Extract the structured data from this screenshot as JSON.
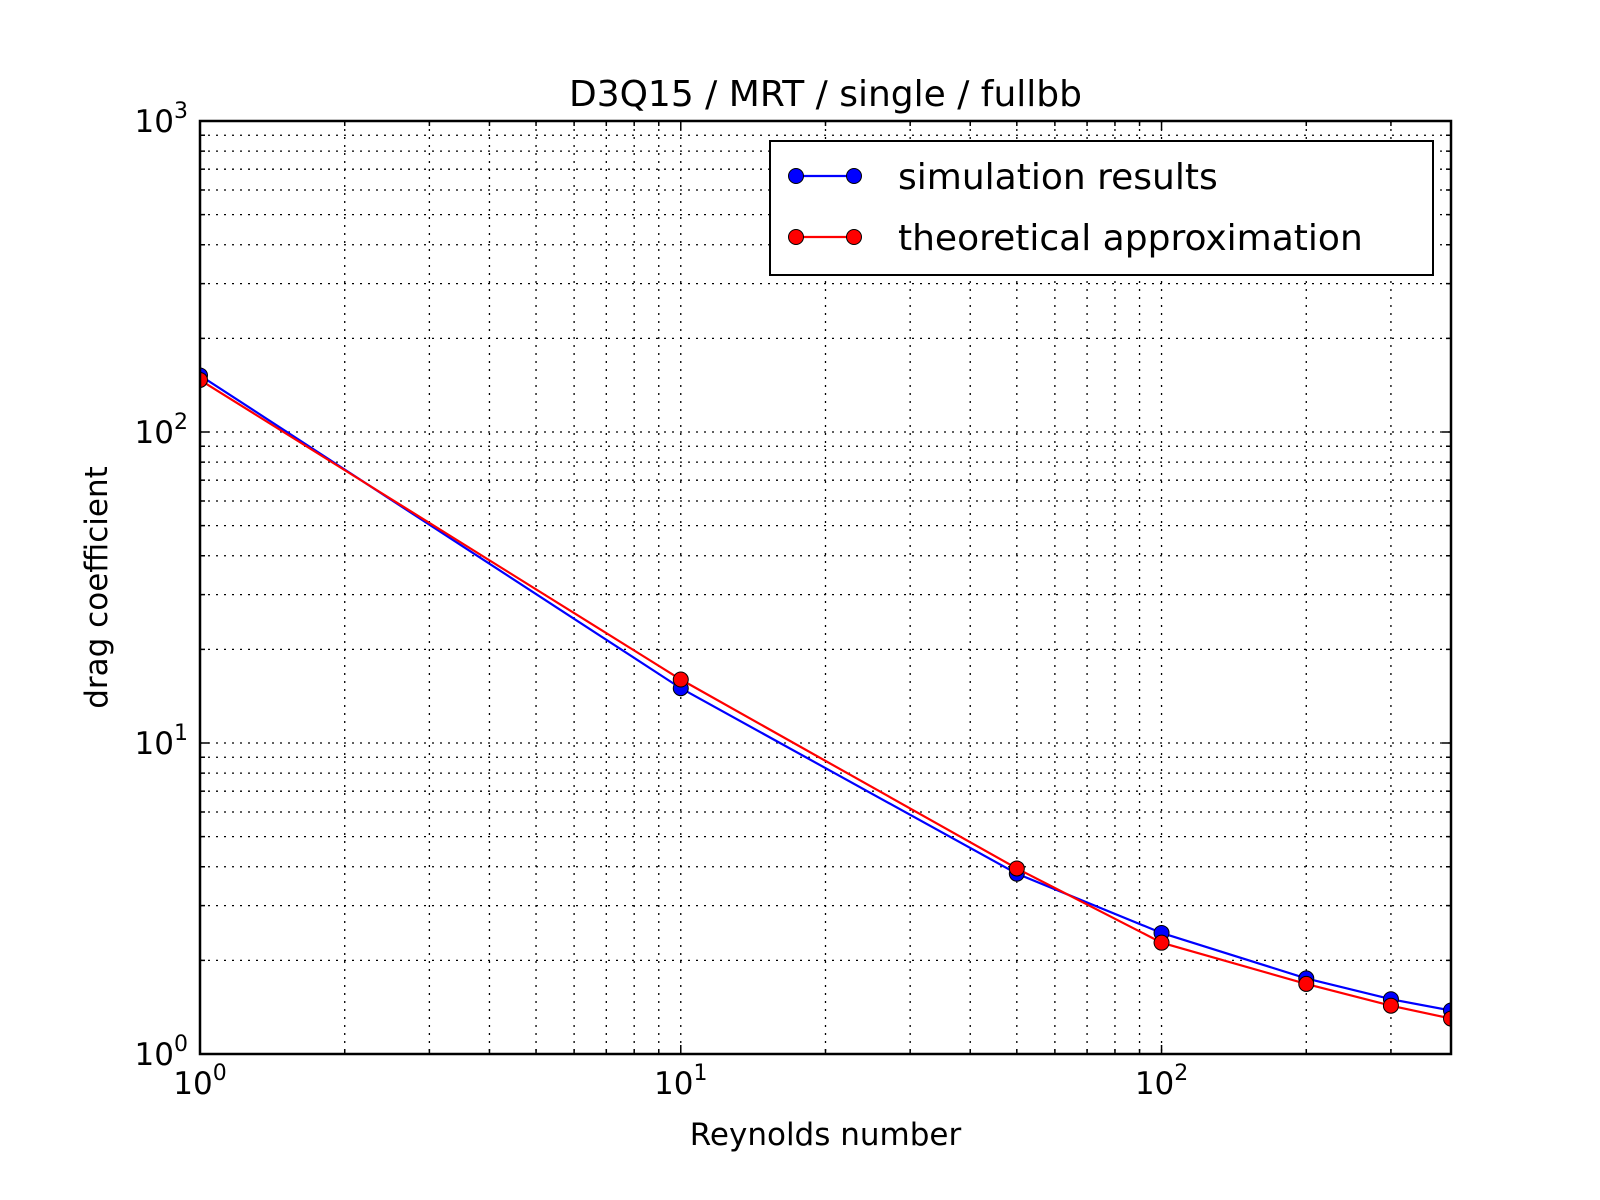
{
  "chart_data": {
    "type": "line",
    "title": "D3Q15 / MRT / single / fullbb",
    "xlabel": "Reynolds number",
    "ylabel": "drag coefficient",
    "xscale": "log",
    "yscale": "log",
    "xlim": [
      1,
      400
    ],
    "ylim": [
      1,
      1000
    ],
    "grid": true,
    "legend_position": "top-right",
    "x_ticks": [
      {
        "value": 1,
        "base": "10",
        "exp": "0"
      },
      {
        "value": 10,
        "base": "10",
        "exp": "1"
      },
      {
        "value": 100,
        "base": "10",
        "exp": "2"
      }
    ],
    "y_ticks": [
      {
        "value": 1,
        "base": "10",
        "exp": "0"
      },
      {
        "value": 10,
        "base": "10",
        "exp": "1"
      },
      {
        "value": 100,
        "base": "10",
        "exp": "2"
      },
      {
        "value": 1000,
        "base": "10",
        "exp": "3"
      }
    ],
    "series": [
      {
        "name": "simulation results",
        "color": "#0000ff",
        "x": [
          1,
          10,
          50,
          100,
          200,
          300,
          400
        ],
        "y": [
          152,
          15.0,
          3.8,
          2.45,
          1.75,
          1.5,
          1.38
        ]
      },
      {
        "name": "theoretical approximation",
        "color": "#ff0000",
        "x": [
          1,
          10,
          50,
          100,
          200,
          300,
          400
        ],
        "y": [
          147,
          16.0,
          3.95,
          2.28,
          1.68,
          1.43,
          1.3
        ]
      }
    ]
  }
}
